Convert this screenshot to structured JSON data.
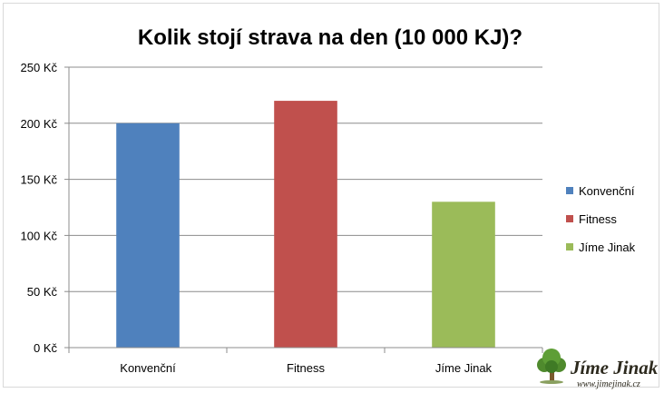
{
  "chart_data": {
    "type": "bar",
    "title": "Kolik stojí strava na den (10 000 KJ)?",
    "categories": [
      "Konvenční",
      "Fitness",
      "Jíme Jinak"
    ],
    "values": [
      200,
      220,
      130
    ],
    "colors": [
      "#4f81bd",
      "#c0504d",
      "#9bbb59"
    ],
    "ylim": [
      0,
      250
    ],
    "yticks": [
      0,
      50,
      100,
      150,
      200,
      250
    ],
    "ytick_labels": [
      "0 Kč",
      "50 Kč",
      "100 Kč",
      "150 Kč",
      "200 Kč",
      "250 Kč"
    ],
    "grid": true,
    "legend_position": "right",
    "legend": [
      "Konvenční",
      "Fitness",
      "Jíme Jinak"
    ]
  },
  "logo": {
    "name": "Jíme Jinak",
    "url": "www.jimejinak.cz"
  }
}
